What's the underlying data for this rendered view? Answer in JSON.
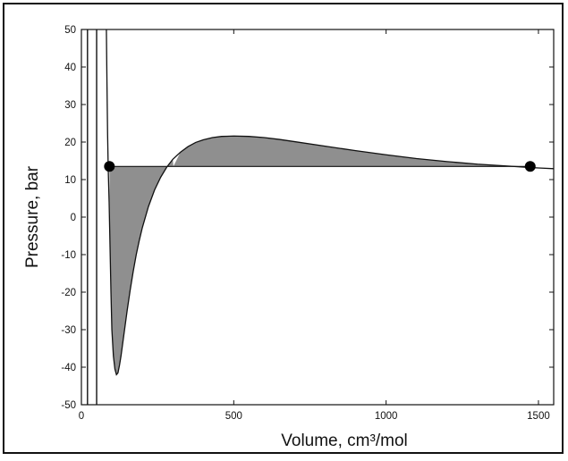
{
  "chart_data": {
    "type": "line",
    "xlabel": "Volume, cm³/mol",
    "ylabel": "Pressure, bar",
    "xlim": [
      0,
      1550
    ],
    "ylim": [
      -50,
      50
    ],
    "xticks": [
      0,
      500,
      1000,
      1500
    ],
    "yticks": [
      -50,
      -40,
      -30,
      -20,
      -10,
      0,
      10,
      20,
      30,
      40,
      50
    ],
    "grid": false,
    "legend": null,
    "colors": {
      "line": "#111111",
      "fill": "#8f8f8f",
      "frame": "#111111"
    },
    "series": [
      {
        "type": "line",
        "points": [
          [
            82,
            50
          ],
          [
            84,
            35
          ],
          [
            86,
            22
          ],
          [
            88,
            13
          ],
          [
            91,
            4
          ],
          [
            94,
            -8
          ],
          [
            97,
            -20
          ],
          [
            100,
            -30
          ],
          [
            105,
            -37
          ],
          [
            110,
            -40.5
          ],
          [
            115,
            -42
          ],
          [
            120,
            -41.5
          ],
          [
            125,
            -39.5
          ],
          [
            130,
            -37
          ],
          [
            140,
            -31
          ],
          [
            150,
            -25
          ],
          [
            160,
            -19.5
          ],
          [
            170,
            -14.5
          ],
          [
            180,
            -10
          ],
          [
            190,
            -6.2
          ],
          [
            200,
            -2.8
          ],
          [
            220,
            2.8
          ],
          [
            240,
            7.2
          ],
          [
            260,
            10.6
          ],
          [
            280,
            13.3
          ],
          [
            300,
            15.4
          ],
          [
            325,
            17.3
          ],
          [
            350,
            18.8
          ],
          [
            375,
            19.9
          ],
          [
            400,
            20.6
          ],
          [
            430,
            21.2
          ],
          [
            460,
            21.5
          ],
          [
            500,
            21.6
          ],
          [
            550,
            21.5
          ],
          [
            600,
            21.2
          ],
          [
            650,
            20.7
          ],
          [
            700,
            20.1
          ],
          [
            800,
            18.9
          ],
          [
            900,
            17.7
          ],
          [
            1000,
            16.6
          ],
          [
            1100,
            15.6
          ],
          [
            1200,
            14.8
          ],
          [
            1300,
            14.1
          ],
          [
            1400,
            13.6
          ],
          [
            1475,
            13.2
          ],
          [
            1500,
            13.1
          ],
          [
            1550,
            12.9
          ]
        ]
      },
      {
        "type": "hline",
        "y": 13.5,
        "x_range": [
          92,
          1473
        ]
      },
      {
        "type": "vline",
        "x": 20
      },
      {
        "type": "vline",
        "x": 50
      }
    ],
    "markers": [
      {
        "x": 92,
        "y": 13.5
      },
      {
        "x": 1473,
        "y": 13.5
      }
    ],
    "shaded_regions": [
      {
        "x_range": [
          92,
          302
        ],
        "between": "curve_and_hline"
      },
      {
        "x_range": [
          302,
          1473
        ],
        "between": "curve_and_hline"
      }
    ]
  }
}
